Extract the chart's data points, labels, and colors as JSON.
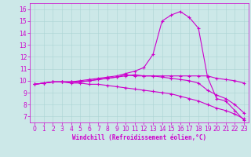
{
  "xlabel": "Windchill (Refroidissement éolien,°C)",
  "ylabel": "",
  "bg_color": "#cce8e8",
  "line_color": "#cc00cc",
  "x_hours": [
    0,
    1,
    2,
    3,
    4,
    5,
    6,
    7,
    8,
    9,
    10,
    11,
    12,
    13,
    14,
    15,
    16,
    17,
    18,
    19,
    20,
    21,
    22,
    23
  ],
  "series": [
    [
      9.7,
      9.8,
      9.9,
      9.9,
      9.9,
      9.9,
      10.0,
      10.1,
      10.2,
      10.3,
      10.5,
      10.4,
      10.4,
      10.4,
      10.4,
      10.4,
      10.4,
      10.4,
      10.4,
      10.4,
      10.2,
      10.1,
      10.0,
      9.8
    ],
    [
      9.7,
      9.8,
      9.9,
      9.9,
      9.9,
      10.0,
      10.1,
      10.2,
      10.3,
      10.4,
      10.6,
      10.8,
      11.1,
      12.2,
      15.0,
      15.5,
      15.8,
      15.3,
      14.4,
      10.3,
      8.5,
      8.3,
      7.5,
      6.7
    ],
    [
      9.7,
      9.8,
      9.9,
      9.9,
      9.9,
      9.9,
      10.0,
      10.1,
      10.2,
      10.3,
      10.4,
      10.5,
      10.4,
      10.4,
      10.3,
      10.2,
      10.1,
      10.0,
      9.8,
      9.2,
      8.8,
      8.5,
      8.0,
      7.3
    ],
    [
      9.7,
      9.8,
      9.9,
      9.9,
      9.8,
      9.8,
      9.7,
      9.7,
      9.6,
      9.5,
      9.4,
      9.3,
      9.2,
      9.1,
      9.0,
      8.9,
      8.7,
      8.5,
      8.3,
      8.0,
      7.7,
      7.5,
      7.2,
      6.8
    ]
  ],
  "ylim": [
    6.5,
    16.5
  ],
  "yticks": [
    7,
    8,
    9,
    10,
    11,
    12,
    13,
    14,
    15,
    16
  ],
  "xlim": [
    -0.5,
    23.5
  ],
  "xticks": [
    0,
    1,
    2,
    3,
    4,
    5,
    6,
    7,
    8,
    9,
    10,
    11,
    12,
    13,
    14,
    15,
    16,
    17,
    18,
    19,
    20,
    21,
    22,
    23
  ],
  "tick_fontsize": 5.5,
  "xlabel_fontsize": 5.5,
  "marker_size": 2.5,
  "line_width": 0.8
}
